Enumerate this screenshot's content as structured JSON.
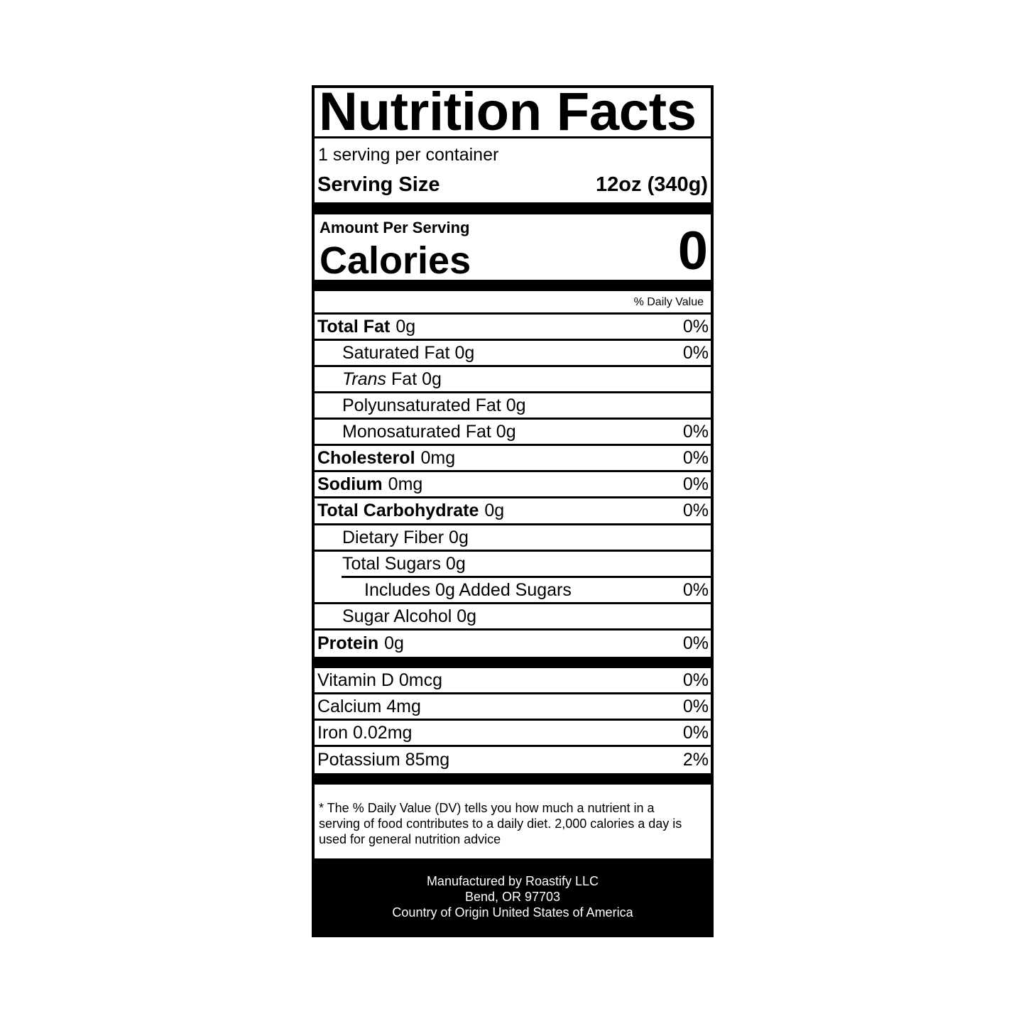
{
  "title": "Nutrition Facts",
  "servings_per_container": "1 serving per container",
  "serving_size": {
    "label": "Serving Size",
    "value": "12oz (340g)"
  },
  "amount_per_serving": "Amount Per Serving",
  "calories": {
    "label": "Calories",
    "value": "0"
  },
  "daily_value_header": "% Daily Value",
  "nutrients": [
    {
      "name": "Total Fat",
      "amount": "0g",
      "dv": "0%"
    },
    {
      "name": "Saturated Fat",
      "amount": "0g",
      "dv": "0%"
    },
    {
      "name": "Trans",
      "name_suffix": "Fat",
      "amount": "0g",
      "dv": ""
    },
    {
      "name": "Polyunsaturated Fat",
      "amount": "0g",
      "dv": ""
    },
    {
      "name": "Monosaturated Fat",
      "amount": "0g",
      "dv": "0%"
    },
    {
      "name": "Cholesterol",
      "amount": "0mg",
      "dv": "0%"
    },
    {
      "name": "Sodium",
      "amount": "0mg",
      "dv": "0%"
    },
    {
      "name": "Total Carbohydrate",
      "amount": "0g",
      "dv": "0%"
    },
    {
      "name": "Dietary Fiber",
      "amount": "0g",
      "dv": ""
    },
    {
      "name": "Total Sugars",
      "amount": "0g",
      "dv": ""
    },
    {
      "name": "Includes 0g Added Sugars",
      "amount": "",
      "dv": "0%"
    },
    {
      "name": "Sugar Alcohol",
      "amount": "0g",
      "dv": ""
    },
    {
      "name": "Protein",
      "amount": "0g",
      "dv": "0%"
    }
  ],
  "vitamins": [
    {
      "name": "Vitamin D",
      "amount": "0mcg",
      "dv": "0%"
    },
    {
      "name": "Calcium",
      "amount": "4mg",
      "dv": "0%"
    },
    {
      "name": "Iron",
      "amount": "0.02mg",
      "dv": "0%"
    },
    {
      "name": "Potassium",
      "amount": "85mg",
      "dv": "2%"
    }
  ],
  "footnote": "* The % Daily Value (DV) tells you how much a nutrient in a serving of food contributes to a daily diet. 2,000 calories a day is used for general nutrition advice",
  "manufacturer": {
    "line1": "Manufactured by Roastify LLC",
    "line2": "Bend, OR 97703",
    "line3": "Country of Origin United States of America"
  }
}
